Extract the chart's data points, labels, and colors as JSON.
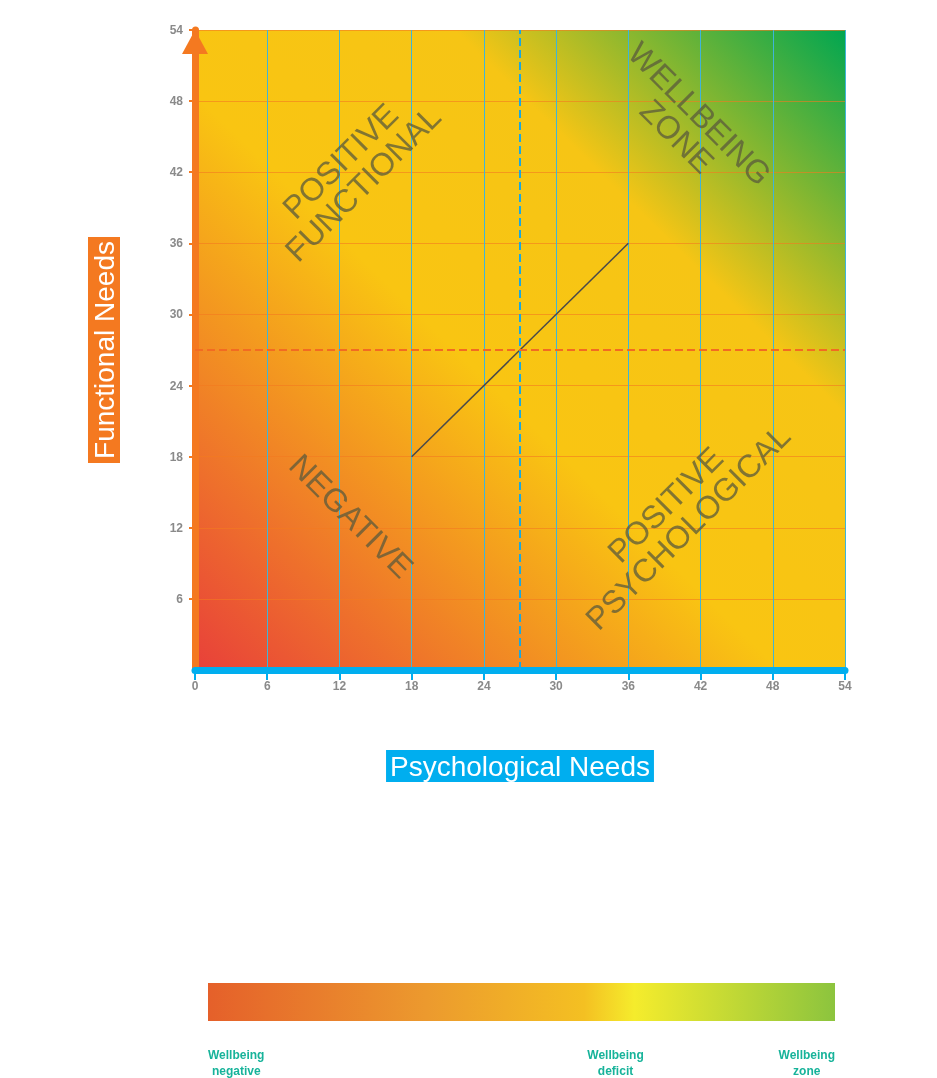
{
  "chart_data": {
    "type": "line",
    "xlabel": "Psychological Needs",
    "ylabel": "Functional Needs",
    "x": [
      18,
      36
    ],
    "series": [
      {
        "color": "#4a4a4a",
        "values": [
          18,
          36
        ]
      }
    ],
    "xlim": [
      0,
      54
    ],
    "xticks": [
      0,
      6,
      12,
      18,
      24,
      30,
      36,
      42,
      48,
      54
    ],
    "ylim": [
      0,
      54
    ],
    "yticks": [
      6,
      12,
      18,
      24,
      30,
      36,
      42,
      48,
      54
    ],
    "grid": true,
    "marker": "none",
    "line_style": "solid",
    "ref_lines": [
      {
        "axis": "x",
        "value": 27,
        "color": "#1aa8e0",
        "line_style": "dashed"
      },
      {
        "axis": "y",
        "value": 27,
        "color": "#f26b22",
        "line_style": "dashed"
      }
    ],
    "annotations": [
      "POSITIVE\nFUNCTIONAL",
      "WELLBEING\nZONE",
      "NEGATIVE",
      "POSITIVE\nPSYCHOLOGICAL",
      "Wellbeing\nnegative",
      "Wellbeing\ndeficit",
      "Wellbeing\nzone"
    ]
  }
}
